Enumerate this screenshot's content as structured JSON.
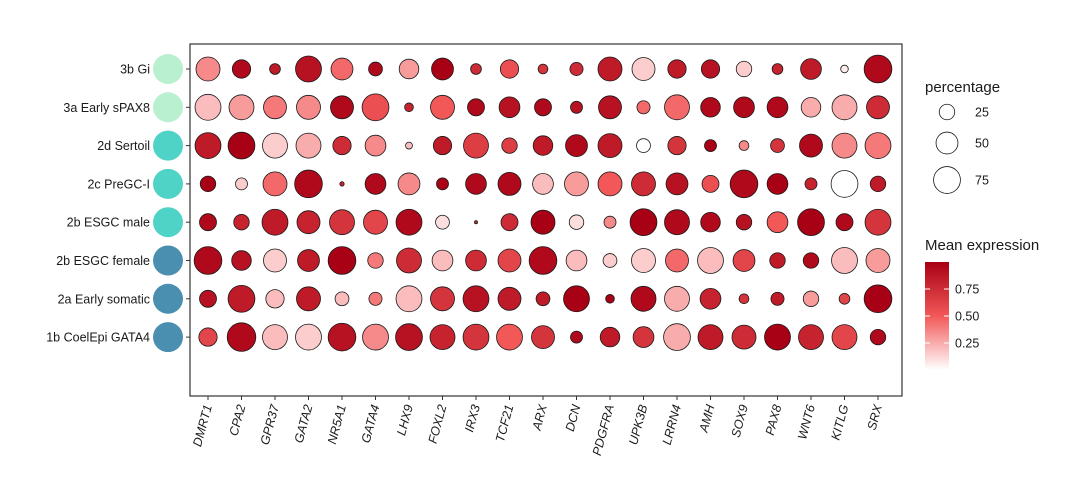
{
  "chart_data": {
    "type": "dotplot",
    "title": "",
    "rows": [
      "3b Gi",
      "3a Early sPAX8",
      "2d Sertoil",
      "2c PreGC-I",
      "2b ESGC male",
      "2b ESGC female",
      "2a Early somatic",
      "1b CoelEpi GATA4"
    ],
    "row_colors": [
      "#b9f0cf",
      "#b9f0cf",
      "#4fd3c6",
      "#4fd3c6",
      "#4fd3c6",
      "#4a8fb0",
      "#4a8fb0",
      "#4a8fb0"
    ],
    "genes": [
      "DMRT1",
      "CPA2",
      "GPR37",
      "GATA2",
      "NR5A1",
      "GATA4",
      "LHX9",
      "FOXL2",
      "IRX3",
      "TCF21",
      "ARX",
      "DCN",
      "PDGFRA",
      "UPK3B",
      "LRRN4",
      "AMH",
      "SOX9",
      "PAX8",
      "WNT6",
      "KITLG",
      "SRX"
    ],
    "percentage": [
      [
        60,
        35,
        12,
        70,
        50,
        20,
        40,
        50,
        12,
        35,
        10,
        18,
        60,
        55,
        35,
        35,
        25,
        12,
        45,
        6,
        80
      ],
      [
        70,
        65,
        55,
        60,
        55,
        75,
        8,
        60,
        30,
        45,
        30,
        15,
        55,
        18,
        65,
        40,
        45,
        45,
        40,
        65,
        55
      ],
      [
        70,
        75,
        65,
        65,
        35,
        45,
        5,
        35,
        65,
        25,
        40,
        50,
        60,
        20,
        35,
        15,
        10,
        20,
        55,
        65,
        70
      ],
      [
        25,
        15,
        60,
        80,
        2,
        45,
        50,
        15,
        45,
        55,
        45,
        60,
        60,
        60,
        50,
        30,
        80,
        45,
        15,
        75,
        25
      ],
      [
        30,
        25,
        70,
        55,
        65,
        60,
        70,
        20,
        1,
        30,
        60,
        22,
        15,
        75,
        65,
        40,
        25,
        45,
        75,
        30,
        70
      ],
      [
        80,
        40,
        55,
        50,
        80,
        25,
        65,
        45,
        45,
        55,
        80,
        45,
        20,
        60,
        55,
        70,
        50,
        25,
        25,
        70,
        60
      ],
      [
        30,
        75,
        35,
        60,
        20,
        18,
        70,
        60,
        70,
        55,
        20,
        70,
        8,
        65,
        65,
        45,
        10,
        18,
        25,
        12,
        80
      ],
      [
        35,
        85,
        65,
        70,
        80,
        70,
        75,
        65,
        70,
        70,
        55,
        15,
        40,
        45,
        75,
        65,
        60,
        70,
        65,
        65,
        25
      ]
    ],
    "mean_expression": [
      [
        0.35,
        0.95,
        0.85,
        0.9,
        0.45,
        0.95,
        0.3,
        1.0,
        0.75,
        0.55,
        0.7,
        0.75,
        0.85,
        0.15,
        0.85,
        0.9,
        0.15,
        0.8,
        0.85,
        0.05,
        0.95
      ],
      [
        0.2,
        0.3,
        0.4,
        0.35,
        0.95,
        0.55,
        0.8,
        0.5,
        0.95,
        0.9,
        0.95,
        0.9,
        0.9,
        0.45,
        0.45,
        0.95,
        0.95,
        0.95,
        0.25,
        0.25,
        0.75
      ],
      [
        0.85,
        1.0,
        0.15,
        0.25,
        0.75,
        0.35,
        0.2,
        0.85,
        0.65,
        0.65,
        0.85,
        0.95,
        0.85,
        0.0,
        0.7,
        1.0,
        0.35,
        0.7,
        0.95,
        0.35,
        0.4
      ],
      [
        1.0,
        0.15,
        0.45,
        0.95,
        0.8,
        0.95,
        0.35,
        1.0,
        0.95,
        0.95,
        0.2,
        0.3,
        0.5,
        0.75,
        0.9,
        0.55,
        0.95,
        1.0,
        0.8,
        0.0,
        0.85
      ],
      [
        0.95,
        0.8,
        0.85,
        0.8,
        0.7,
        0.6,
        0.95,
        0.1,
        0.8,
        0.75,
        1.0,
        0.1,
        0.35,
        1.0,
        0.95,
        0.95,
        0.9,
        0.5,
        1.0,
        0.95,
        0.7
      ],
      [
        0.95,
        0.9,
        0.15,
        0.85,
        1.0,
        0.4,
        0.75,
        0.2,
        0.75,
        0.6,
        0.95,
        0.2,
        0.15,
        0.15,
        0.45,
        0.2,
        0.6,
        0.85,
        0.95,
        0.2,
        0.3
      ],
      [
        0.9,
        0.85,
        0.2,
        0.85,
        0.2,
        0.4,
        0.2,
        0.7,
        0.9,
        0.85,
        0.85,
        1.0,
        1.0,
        0.95,
        0.25,
        0.8,
        0.7,
        0.85,
        0.3,
        0.6,
        1.0
      ],
      [
        0.6,
        0.95,
        0.2,
        0.15,
        0.9,
        0.35,
        0.9,
        0.8,
        0.7,
        0.5,
        0.7,
        0.95,
        0.85,
        0.7,
        0.25,
        0.85,
        0.75,
        1.0,
        0.8,
        0.6,
        0.95
      ]
    ],
    "size_legend": {
      "title": "percentage",
      "values": [
        25,
        50,
        75
      ],
      "labels": [
        "25",
        "50",
        "75"
      ]
    },
    "color_legend": {
      "title": "Mean expression",
      "ticks": [
        0.25,
        0.5,
        0.75
      ],
      "tick_labels": [
        "0.25",
        "0.50",
        "0.75"
      ],
      "range": [
        0,
        1
      ],
      "low_color": "#ffffff",
      "mid_color": "#f25858",
      "high_color": "#a80014"
    }
  }
}
